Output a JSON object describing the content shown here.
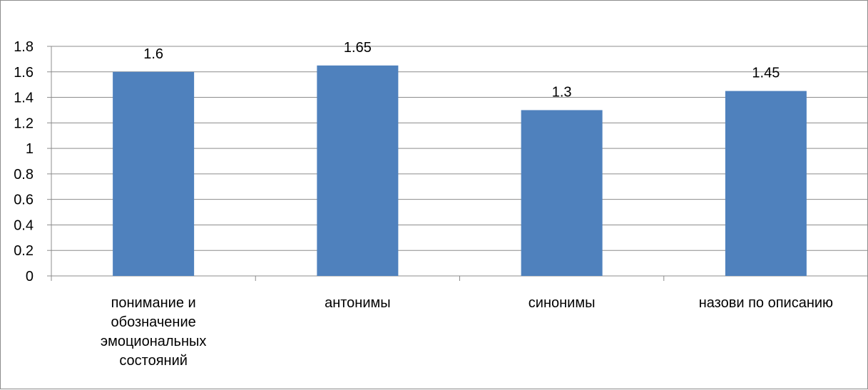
{
  "chart_data": {
    "type": "bar",
    "categories": [
      [
        "понимание и",
        "обозначение",
        "эмоциональных",
        "состояний"
      ],
      [
        "антонимы"
      ],
      [
        "синонимы"
      ],
      [
        "назови по описанию"
      ]
    ],
    "values": [
      1.6,
      1.65,
      1.3,
      1.45
    ],
    "data_labels": [
      "1.6",
      "1.65",
      "1.3",
      "1.45"
    ],
    "y_ticks": [
      "0",
      "0.2",
      "0.4",
      "0.6",
      "0.8",
      "1",
      "1.2",
      "1.4",
      "1.6",
      "1.8"
    ],
    "ylim": [
      0,
      1.8
    ],
    "grid": true,
    "legend": "none",
    "colors": {
      "bar": "#4f81bd",
      "grid": "#8c8c8c",
      "axis": "#8c8c8c",
      "frame": "#8c8c8c"
    }
  }
}
